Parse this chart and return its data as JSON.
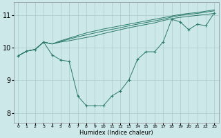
{
  "xlabel": "Humidex (Indice chaleur)",
  "bg_color": "#cce8e8",
  "line_color": "#2a7a6a",
  "grid_color": "#aacccc",
  "xlim": [
    -0.5,
    23.5
  ],
  "ylim": [
    7.7,
    11.4
  ],
  "yticks": [
    8,
    9,
    10,
    11
  ],
  "xticks": [
    0,
    1,
    2,
    3,
    4,
    5,
    6,
    7,
    8,
    9,
    10,
    11,
    12,
    13,
    14,
    15,
    16,
    17,
    18,
    19,
    20,
    21,
    22,
    23
  ],
  "line1_y": [
    9.75,
    9.9,
    9.95,
    10.18,
    10.12,
    10.18,
    10.22,
    10.27,
    10.32,
    10.37,
    10.44,
    10.5,
    10.56,
    10.62,
    10.67,
    10.72,
    10.77,
    10.84,
    10.9,
    10.94,
    10.97,
    11.0,
    11.03,
    11.06
  ],
  "line2_y": [
    9.75,
    9.9,
    9.95,
    10.18,
    10.12,
    10.2,
    10.27,
    10.34,
    10.4,
    10.46,
    10.52,
    10.57,
    10.62,
    10.68,
    10.73,
    10.78,
    10.83,
    10.88,
    10.95,
    11.0,
    11.03,
    11.06,
    11.1,
    11.14
  ],
  "line3_y": [
    9.75,
    9.9,
    9.95,
    10.18,
    10.12,
    10.22,
    10.3,
    10.38,
    10.46,
    10.52,
    10.58,
    10.63,
    10.68,
    10.73,
    10.78,
    10.83,
    10.88,
    10.93,
    10.98,
    11.03,
    11.06,
    11.09,
    11.13,
    11.17
  ],
  "line_main_y": [
    9.75,
    9.9,
    9.95,
    10.18,
    9.78,
    9.63,
    9.58,
    8.52,
    8.22,
    8.22,
    8.22,
    8.52,
    8.68,
    9.02,
    9.65,
    9.88,
    9.88,
    10.18,
    10.88,
    10.8,
    10.56,
    10.73,
    10.68,
    11.08
  ]
}
